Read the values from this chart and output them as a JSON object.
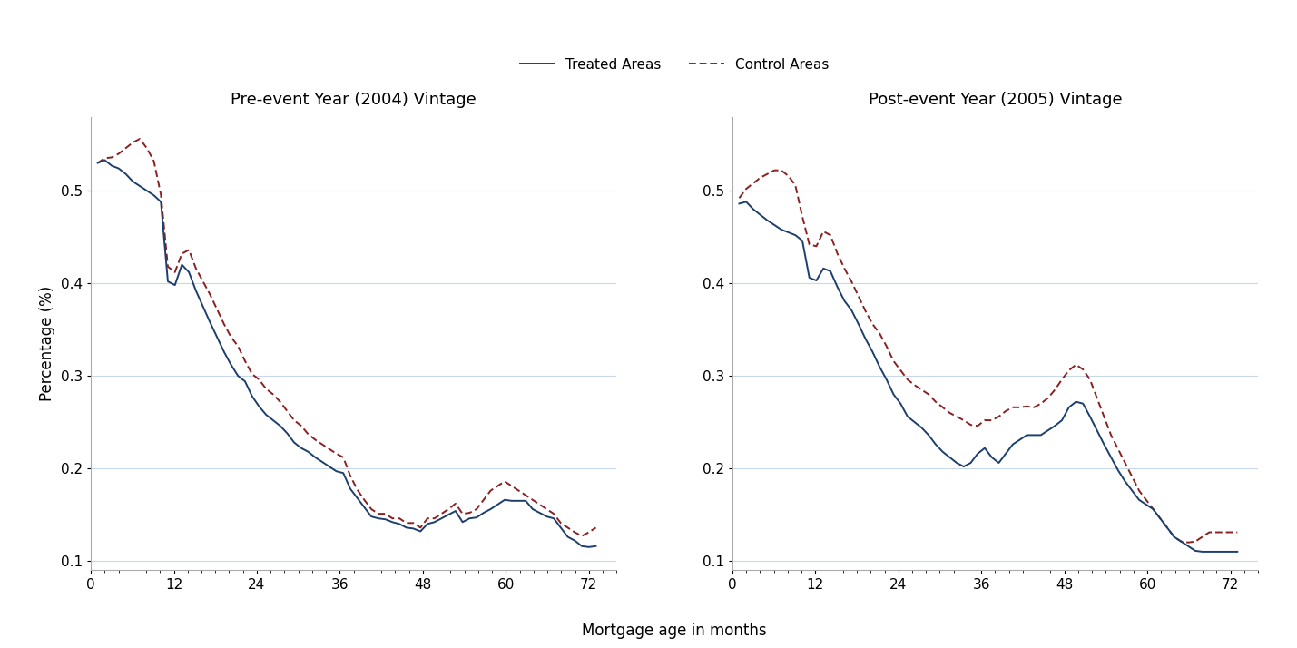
{
  "left_title": "Pre-event Year (2004) Vintage",
  "right_title": "Post-event Year (2005) Vintage",
  "xlabel": "Mortgage age in months",
  "ylabel": "Percentage (%)",
  "ylim": [
    0.09,
    0.58
  ],
  "xlim": [
    0,
    76
  ],
  "yticks": [
    0.1,
    0.2,
    0.3,
    0.4,
    0.5
  ],
  "xticks": [
    0,
    12,
    24,
    36,
    48,
    60,
    72
  ],
  "treated_color": "#1c3f6e",
  "control_color": "#8b2020",
  "treated_label": "Treated Areas",
  "control_label": "Control Areas",
  "bg_color": "#ffffff",
  "grid_color": "#c8d8e8",
  "left_treated": [
    0.53,
    0.533,
    0.527,
    0.524,
    0.518,
    0.51,
    0.505,
    0.5,
    0.495,
    0.488,
    0.402,
    0.398,
    0.42,
    0.412,
    0.392,
    0.375,
    0.358,
    0.342,
    0.326,
    0.312,
    0.3,
    0.294,
    0.278,
    0.267,
    0.258,
    0.252,
    0.246,
    0.238,
    0.228,
    0.222,
    0.218,
    0.212,
    0.207,
    0.202,
    0.197,
    0.195,
    0.178,
    0.168,
    0.158,
    0.148,
    0.146,
    0.145,
    0.142,
    0.14,
    0.136,
    0.135,
    0.132,
    0.14,
    0.142,
    0.146,
    0.15,
    0.154,
    0.142,
    0.146,
    0.147,
    0.152,
    0.156,
    0.161,
    0.166,
    0.165,
    0.165,
    0.165,
    0.156,
    0.152,
    0.148,
    0.146,
    0.136,
    0.126,
    0.122,
    0.116,
    0.115,
    0.116
  ],
  "left_control": [
    0.53,
    0.535,
    0.536,
    0.54,
    0.546,
    0.552,
    0.556,
    0.546,
    0.532,
    0.496,
    0.418,
    0.412,
    0.432,
    0.436,
    0.416,
    0.402,
    0.388,
    0.372,
    0.356,
    0.342,
    0.332,
    0.316,
    0.302,
    0.296,
    0.286,
    0.28,
    0.272,
    0.262,
    0.252,
    0.246,
    0.237,
    0.231,
    0.226,
    0.221,
    0.216,
    0.212,
    0.192,
    0.177,
    0.166,
    0.156,
    0.151,
    0.151,
    0.146,
    0.146,
    0.141,
    0.141,
    0.136,
    0.146,
    0.146,
    0.151,
    0.156,
    0.162,
    0.151,
    0.152,
    0.156,
    0.166,
    0.176,
    0.181,
    0.186,
    0.181,
    0.176,
    0.171,
    0.166,
    0.161,
    0.156,
    0.151,
    0.141,
    0.136,
    0.131,
    0.127,
    0.131,
    0.136
  ],
  "right_treated": [
    0.486,
    0.488,
    0.48,
    0.474,
    0.468,
    0.463,
    0.458,
    0.455,
    0.452,
    0.446,
    0.406,
    0.403,
    0.416,
    0.413,
    0.396,
    0.381,
    0.371,
    0.356,
    0.34,
    0.326,
    0.31,
    0.296,
    0.28,
    0.27,
    0.256,
    0.25,
    0.244,
    0.236,
    0.226,
    0.218,
    0.212,
    0.206,
    0.202,
    0.206,
    0.216,
    0.222,
    0.212,
    0.206,
    0.216,
    0.226,
    0.231,
    0.236,
    0.236,
    0.236,
    0.241,
    0.246,
    0.252,
    0.266,
    0.272,
    0.27,
    0.256,
    0.241,
    0.226,
    0.212,
    0.198,
    0.186,
    0.176,
    0.166,
    0.161,
    0.156,
    0.146,
    0.136,
    0.126,
    0.121,
    0.116,
    0.111,
    0.11,
    0.11,
    0.11,
    0.11,
    0.11,
    0.11
  ],
  "right_control": [
    0.492,
    0.502,
    0.508,
    0.514,
    0.518,
    0.522,
    0.522,
    0.516,
    0.506,
    0.472,
    0.442,
    0.44,
    0.456,
    0.452,
    0.432,
    0.416,
    0.402,
    0.386,
    0.37,
    0.356,
    0.346,
    0.332,
    0.316,
    0.306,
    0.296,
    0.29,
    0.285,
    0.28,
    0.272,
    0.266,
    0.26,
    0.256,
    0.252,
    0.247,
    0.246,
    0.252,
    0.252,
    0.256,
    0.262,
    0.266,
    0.266,
    0.267,
    0.266,
    0.27,
    0.276,
    0.285,
    0.296,
    0.306,
    0.312,
    0.307,
    0.296,
    0.276,
    0.256,
    0.236,
    0.221,
    0.206,
    0.191,
    0.176,
    0.166,
    0.156,
    0.146,
    0.136,
    0.126,
    0.121,
    0.12,
    0.121,
    0.126,
    0.131,
    0.131,
    0.131,
    0.131,
    0.131
  ]
}
